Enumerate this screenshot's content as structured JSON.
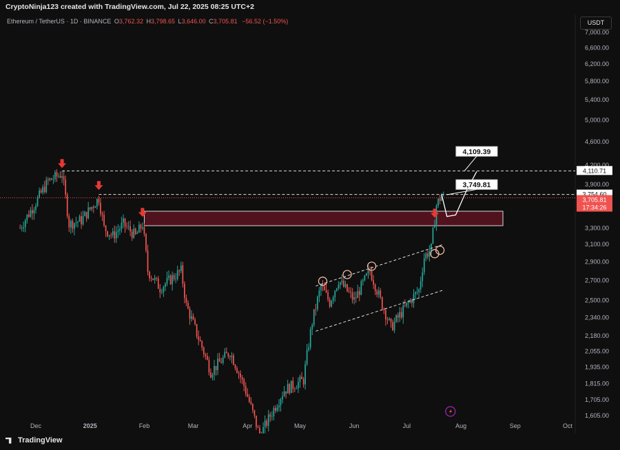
{
  "header": {
    "credit": "CryptoNinja123 created with TradingView.com, Jul 22, 2025 08:25 UTC+2"
  },
  "symbol": {
    "name": "Ethereum / TetherUS · 1D · BINANCE",
    "o_label": "O",
    "o": "3,762.32",
    "h_label": "H",
    "h": "3,798.65",
    "l_label": "L",
    "l": "3,646.00",
    "c_label": "C",
    "c": "3,705.81",
    "change": "−56.52 (−1.50%)"
  },
  "currency": "USDT",
  "footer": {
    "brand": "TradingView"
  },
  "colors": {
    "up": "#26a69a",
    "down": "#ef5350",
    "zone_fill": "#5c1320",
    "zone_border": "#d9d9d9",
    "arrow": "#e53935"
  },
  "chart_data": {
    "type": "candlestick",
    "symbol": "ETH/USDT",
    "timeframe": "1D",
    "yscale": "log",
    "ylim": [
      1560,
      7300
    ],
    "y_ticks": [
      "7,000.00",
      "6,600.00",
      "6,200.00",
      "5,800.00",
      "5,400.00",
      "5,000.00",
      "4,600.00",
      "4,200.00",
      "3,900.00",
      "3,300.00",
      "3,100.00",
      "2,900.00",
      "2,700.00",
      "2,500.00",
      "2,340.00",
      "2,180.00",
      "2,055.00",
      "1,935.00",
      "1,815.00",
      "1,705.00",
      "1,605.00"
    ],
    "x_ticks": [
      "Dec",
      "2025",
      "Feb",
      "Mar",
      "Apr",
      "May",
      "Jun",
      "Jul",
      "Aug",
      "Sep",
      "Oct"
    ],
    "price_anchors": [
      {
        "date": "2024-11-22",
        "price": 3300
      },
      {
        "date": "2024-11-30",
        "price": 3600
      },
      {
        "date": "2024-12-08",
        "price": 3950
      },
      {
        "date": "2024-12-16",
        "price": 4070
      },
      {
        "date": "2024-12-20",
        "price": 3350
      },
      {
        "date": "2024-12-27",
        "price": 3400
      },
      {
        "date": "2025-01-06",
        "price": 3700
      },
      {
        "date": "2025-01-09",
        "price": 3300
      },
      {
        "date": "2025-01-14",
        "price": 3200
      },
      {
        "date": "2025-01-20",
        "price": 3350
      },
      {
        "date": "2025-01-27",
        "price": 3200
      },
      {
        "date": "2025-01-31",
        "price": 3350
      },
      {
        "date": "2025-02-03",
        "price": 2800
      },
      {
        "date": "2025-02-10",
        "price": 2620
      },
      {
        "date": "2025-02-22",
        "price": 2800
      },
      {
        "date": "2025-02-25",
        "price": 2450
      },
      {
        "date": "2025-03-03",
        "price": 2200
      },
      {
        "date": "2025-03-11",
        "price": 1900
      },
      {
        "date": "2025-03-22",
        "price": 2050
      },
      {
        "date": "2025-03-30",
        "price": 1800
      },
      {
        "date": "2025-04-08",
        "price": 1480
      },
      {
        "date": "2025-04-22",
        "price": 1770
      },
      {
        "date": "2025-05-03",
        "price": 1840
      },
      {
        "date": "2025-05-08",
        "price": 2300
      },
      {
        "date": "2025-05-13",
        "price": 2640
      },
      {
        "date": "2025-05-18",
        "price": 2480
      },
      {
        "date": "2025-05-23",
        "price": 2700
      },
      {
        "date": "2025-06-01",
        "price": 2500
      },
      {
        "date": "2025-06-10",
        "price": 2800
      },
      {
        "date": "2025-06-16",
        "price": 2500
      },
      {
        "date": "2025-06-22",
        "price": 2250
      },
      {
        "date": "2025-07-01",
        "price": 2450
      },
      {
        "date": "2025-07-08",
        "price": 2600
      },
      {
        "date": "2025-07-11",
        "price": 2950
      },
      {
        "date": "2025-07-15",
        "price": 3050
      },
      {
        "date": "2025-07-18",
        "price": 3600
      },
      {
        "date": "2025-07-21",
        "price": 3750
      },
      {
        "date": "2025-07-22",
        "price": 3705.81
      }
    ],
    "horizontal_levels": [
      {
        "price": 4110.71,
        "label": "4,110.71",
        "style": "dashed"
      },
      {
        "price": 3754.6,
        "label": "3,754.60",
        "style": "dashed"
      }
    ],
    "current_price": {
      "value": 3705.81,
      "label": "3,705.81",
      "countdown": "17:34:26"
    },
    "zone": {
      "from": 3330,
      "to": 3520,
      "start": "2025-02-01",
      "end": "2025-08-25"
    },
    "channel": [
      {
        "start": {
          "date": "2025-05-10",
          "price": 2640
        },
        "end": {
          "date": "2025-07-22",
          "price": 3100
        }
      },
      {
        "start": {
          "date": "2025-05-10",
          "price": 2220
        },
        "end": {
          "date": "2025-07-22",
          "price": 2600
        }
      }
    ],
    "circles": [
      {
        "date": "2025-05-14",
        "price": 2690
      },
      {
        "date": "2025-05-28",
        "price": 2760
      },
      {
        "date": "2025-06-11",
        "price": 2850
      },
      {
        "date": "2025-07-17",
        "price": 2990
      },
      {
        "date": "2025-07-20",
        "price": 3030
      }
    ],
    "arrows": [
      {
        "date": "2024-12-16",
        "price": 4200
      },
      {
        "date": "2025-01-06",
        "price": 3860
      },
      {
        "date": "2025-01-31",
        "price": 3480
      },
      {
        "date": "2025-07-17",
        "price": 3470
      }
    ],
    "callouts": [
      {
        "text": "4,109.39",
        "box_date": "2025-08-10",
        "box_price": 4430,
        "to_date": "2025-08-03",
        "to_price": 4110
      },
      {
        "text": "3,749.81",
        "box_date": "2025-08-10",
        "box_price": 3900,
        "to_date": "2025-07-24",
        "to_price": 3750
      }
    ],
    "projection": [
      {
        "date": "2025-07-21",
        "price": 3750
      },
      {
        "date": "2025-07-24",
        "price": 3450
      },
      {
        "date": "2025-07-29",
        "price": 3470
      },
      {
        "date": "2025-08-04",
        "price": 3800
      },
      {
        "date": "2025-08-10",
        "price": 4100
      }
    ],
    "event_icon_date": "2025-07-26"
  }
}
